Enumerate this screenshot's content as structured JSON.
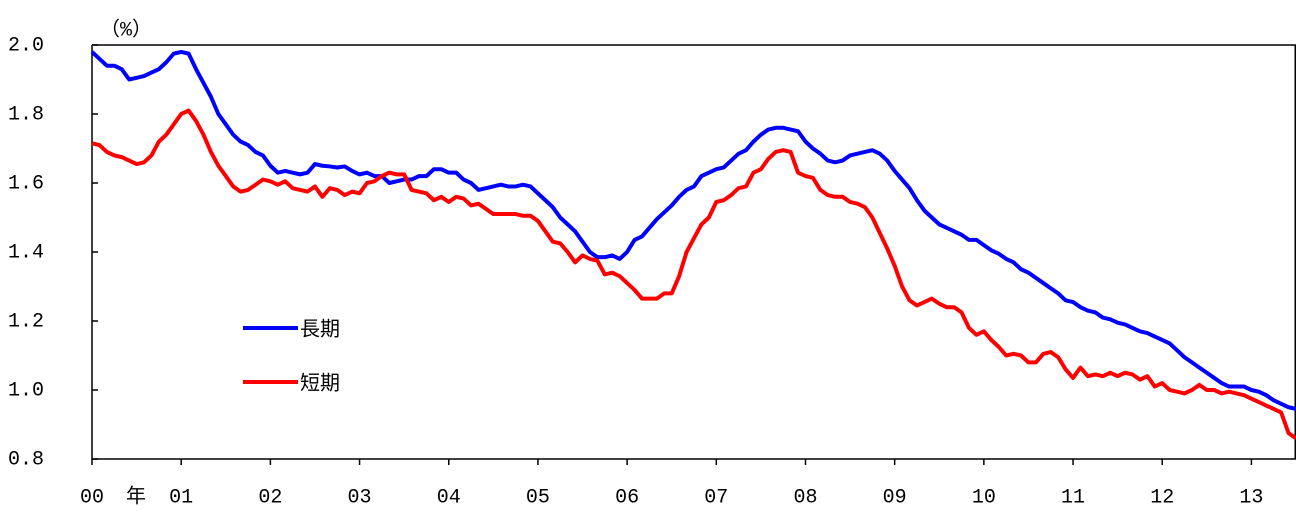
{
  "chart_data": {
    "type": "line",
    "y_label": "（%）",
    "x_label": "年",
    "categories": [
      "00",
      null,
      null,
      null,
      null,
      null,
      null,
      null,
      null,
      null,
      null,
      null,
      "01",
      null,
      null,
      null,
      null,
      null,
      null,
      null,
      null,
      null,
      null,
      null,
      "02",
      null,
      null,
      null,
      null,
      null,
      null,
      null,
      null,
      null,
      null,
      null,
      "03",
      null,
      null,
      null,
      null,
      null,
      null,
      null,
      null,
      null,
      null,
      null,
      "04",
      null,
      null,
      null,
      null,
      null,
      null,
      null,
      null,
      null,
      null,
      null,
      "05",
      null,
      null,
      null,
      null,
      null,
      null,
      null,
      null,
      null,
      null,
      null,
      "06",
      null,
      null,
      null,
      null,
      null,
      null,
      null,
      null,
      null,
      null,
      null,
      "07",
      null,
      null,
      null,
      null,
      null,
      null,
      null,
      null,
      null,
      null,
      null,
      "08",
      null,
      null,
      null,
      null,
      null,
      null,
      null,
      null,
      null,
      null,
      null,
      "09",
      null,
      null,
      null,
      null,
      null,
      null,
      null,
      null,
      null,
      null,
      null,
      "10",
      null,
      null,
      null,
      null,
      null,
      null,
      null,
      null,
      null,
      null,
      null,
      "11",
      null,
      null,
      null,
      null,
      null,
      null,
      null,
      null,
      null,
      null,
      null,
      "12",
      null,
      null,
      null,
      null,
      null,
      null,
      null,
      null,
      null,
      null,
      null,
      "13",
      null,
      null,
      null,
      null,
      null,
      null
    ],
    "series": [
      {
        "name": "長期",
        "color": "#0000ff",
        "values": [
          1.98,
          1.96,
          1.94,
          1.94,
          1.93,
          1.9,
          1.905,
          1.91,
          1.92,
          1.93,
          1.95,
          1.975,
          1.98,
          1.975,
          1.93,
          1.89,
          1.85,
          1.8,
          1.77,
          1.74,
          1.72,
          1.71,
          1.69,
          1.68,
          1.65,
          1.63,
          1.635,
          1.63,
          1.625,
          1.63,
          1.655,
          1.65,
          1.648,
          1.645,
          1.648,
          1.635,
          1.625,
          1.63,
          1.62,
          1.62,
          1.6,
          1.605,
          1.61,
          1.61,
          1.62,
          1.62,
          1.64,
          1.64,
          1.63,
          1.63,
          1.61,
          1.6,
          1.58,
          1.585,
          1.59,
          1.595,
          1.59,
          1.59,
          1.595,
          1.59,
          1.57,
          1.55,
          1.53,
          1.5,
          1.48,
          1.46,
          1.43,
          1.4,
          1.385,
          1.385,
          1.39,
          1.38,
          1.4,
          1.435,
          1.445,
          1.47,
          1.495,
          1.515,
          1.535,
          1.56,
          1.58,
          1.59,
          1.62,
          1.63,
          1.64,
          1.645,
          1.665,
          1.685,
          1.695,
          1.72,
          1.74,
          1.755,
          1.76,
          1.76,
          1.755,
          1.75,
          1.72,
          1.7,
          1.685,
          1.665,
          1.66,
          1.665,
          1.68,
          1.685,
          1.69,
          1.695,
          1.685,
          1.665,
          1.635,
          1.61,
          1.585,
          1.55,
          1.52,
          1.5,
          1.48,
          1.47,
          1.46,
          1.45,
          1.435,
          1.435,
          1.42,
          1.405,
          1.395,
          1.38,
          1.37,
          1.35,
          1.34,
          1.325,
          1.31,
          1.295,
          1.28,
          1.26,
          1.255,
          1.24,
          1.23,
          1.225,
          1.21,
          1.205,
          1.195,
          1.19,
          1.18,
          1.17,
          1.165,
          1.155,
          1.145,
          1.135,
          1.115,
          1.095,
          1.08,
          1.065,
          1.05,
          1.035,
          1.02,
          1.01,
          1.01,
          1.01,
          1.0,
          0.995,
          0.985,
          0.97,
          0.96,
          0.95,
          0.945
        ]
      },
      {
        "name": "短期",
        "color": "#ff0000",
        "values": [
          1.715,
          1.71,
          1.69,
          1.68,
          1.675,
          1.665,
          1.655,
          1.66,
          1.68,
          1.72,
          1.74,
          1.77,
          1.8,
          1.81,
          1.78,
          1.74,
          1.69,
          1.65,
          1.62,
          1.59,
          1.575,
          1.58,
          1.595,
          1.61,
          1.605,
          1.595,
          1.605,
          1.585,
          1.58,
          1.575,
          1.59,
          1.56,
          1.585,
          1.58,
          1.565,
          1.575,
          1.57,
          1.6,
          1.605,
          1.62,
          1.63,
          1.625,
          1.625,
          1.58,
          1.575,
          1.57,
          1.55,
          1.56,
          1.545,
          1.56,
          1.555,
          1.535,
          1.54,
          1.525,
          1.51,
          1.51,
          1.51,
          1.51,
          1.505,
          1.505,
          1.49,
          1.46,
          1.43,
          1.425,
          1.4,
          1.37,
          1.39,
          1.38,
          1.375,
          1.335,
          1.34,
          1.33,
          1.31,
          1.29,
          1.265,
          1.265,
          1.265,
          1.28,
          1.28,
          1.33,
          1.4,
          1.44,
          1.48,
          1.5,
          1.545,
          1.55,
          1.565,
          1.585,
          1.59,
          1.63,
          1.64,
          1.67,
          1.69,
          1.695,
          1.69,
          1.63,
          1.62,
          1.615,
          1.58,
          1.565,
          1.56,
          1.56,
          1.545,
          1.54,
          1.53,
          1.5,
          1.455,
          1.41,
          1.36,
          1.3,
          1.26,
          1.245,
          1.255,
          1.265,
          1.25,
          1.24,
          1.24,
          1.225,
          1.18,
          1.16,
          1.17,
          1.145,
          1.125,
          1.1,
          1.105,
          1.1,
          1.08,
          1.08,
          1.105,
          1.11,
          1.095,
          1.06,
          1.035,
          1.065,
          1.04,
          1.045,
          1.04,
          1.05,
          1.04,
          1.05,
          1.045,
          1.03,
          1.04,
          1.01,
          1.02,
          1.0,
          0.995,
          0.99,
          1.0,
          1.015,
          1.0,
          1.0,
          0.99,
          0.995,
          0.99,
          0.985,
          0.975,
          0.965,
          0.955,
          0.945,
          0.935,
          0.875,
          0.86
        ]
      }
    ],
    "ylim": [
      0.8,
      2.0
    ],
    "yticks": [
      {
        "value": 0.8,
        "label": "0.8"
      },
      {
        "value": 1,
        "label": "1.0"
      },
      1.2,
      1.4,
      1.6,
      1.8,
      {
        "value": 2,
        "label": "2.0"
      }
    ]
  }
}
